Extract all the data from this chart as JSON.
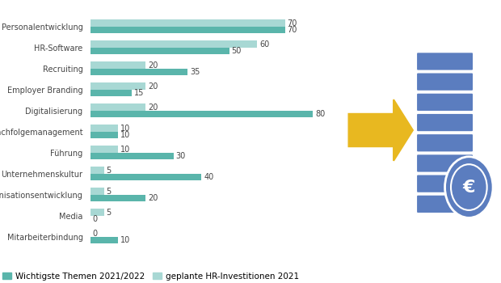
{
  "categories": [
    "Personalentwicklung",
    "HR-Software",
    "Recruiting",
    "Employer Branding",
    "Digitalisierung",
    "Nachfolgemanagement",
    "Führung",
    "Unternehmenskultur",
    "Organisationsentwicklung",
    "Media",
    "Mitarbeiterbindung"
  ],
  "wichtigste": [
    70,
    50,
    35,
    15,
    80,
    10,
    30,
    40,
    20,
    0,
    10
  ],
  "investitionen": [
    70,
    60,
    20,
    20,
    20,
    10,
    10,
    5,
    5,
    5,
    0
  ],
  "color_wichtigste": "#5ab5ab",
  "color_investitionen": "#a8d8d4",
  "background_color": "#ffffff",
  "legend_wichtigste": "Wichtigste Themen 2021/2022",
  "legend_investitionen": "geplante HR-Investitionen 2021",
  "bar_height": 0.32,
  "xlim": [
    0,
    90
  ],
  "label_fontsize": 7.0,
  "value_fontsize": 7.0,
  "legend_fontsize": 7.5,
  "arrow_color": "#e8b820",
  "coin_color": "#5b7dbf",
  "coin_light": "#7090cc"
}
